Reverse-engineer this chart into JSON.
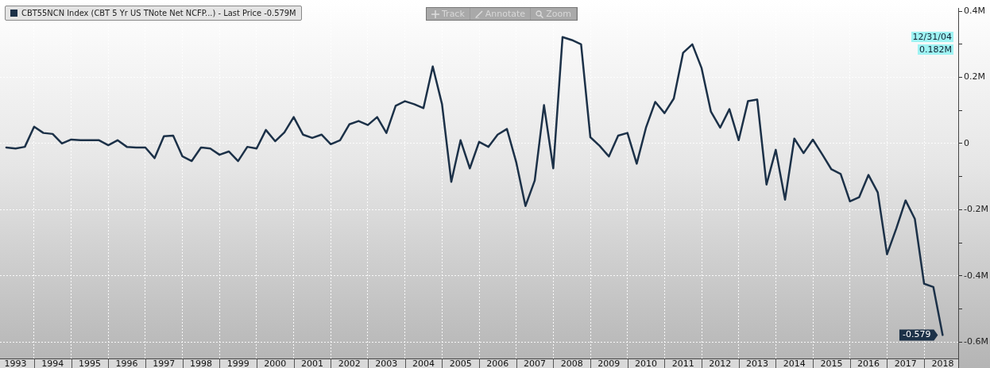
{
  "chart_data": {
    "type": "line",
    "legend": "top left",
    "grid": true,
    "marker": "none",
    "line_style": "solid",
    "x": [
      1993.25,
      1993.5,
      1993.75,
      1994,
      1994.25,
      1994.5,
      1994.75,
      1995,
      1995.25,
      1995.5,
      1995.75,
      1996,
      1996.25,
      1996.5,
      1996.75,
      1997,
      1997.25,
      1997.5,
      1997.75,
      1998,
      1998.25,
      1998.5,
      1998.75,
      1999,
      1999.25,
      1999.5,
      1999.75,
      2000,
      2000.25,
      2000.5,
      2000.75,
      2001,
      2001.25,
      2001.5,
      2001.75,
      2002,
      2002.25,
      2002.5,
      2002.75,
      2003,
      2003.25,
      2003.5,
      2003.75,
      2004,
      2004.25,
      2004.5,
      2004.75,
      2005,
      2005.25,
      2005.5,
      2005.75,
      2006,
      2006.25,
      2006.5,
      2006.75,
      2007,
      2007.25,
      2007.5,
      2007.75,
      2008,
      2008.25,
      2008.5,
      2008.75,
      2009,
      2009.25,
      2009.5,
      2009.75,
      2010,
      2010.25,
      2010.5,
      2010.75,
      2011,
      2011.25,
      2011.5,
      2011.75,
      2012,
      2012.25,
      2012.5,
      2012.75,
      2013,
      2013.25,
      2013.5,
      2013.75,
      2014,
      2014.25,
      2014.5,
      2014.75,
      2015,
      2015.25,
      2015.5,
      2015.75,
      2016,
      2016.25,
      2016.5,
      2016.75,
      2017,
      2017.25,
      2017.5,
      2017.75,
      2018,
      2018.25,
      2018.5
    ],
    "series": [
      {
        "name": "CBT55NCN Index (CBT 5 Yr US TNote Net NCFP...) - Last Price -0.579M",
        "color": "#1c3148",
        "values": [
          -0.012,
          -0.015,
          -0.01,
          0.051,
          0.032,
          0.029,
          0.0,
          0.012,
          0.01,
          0.01,
          0.01,
          -0.005,
          0.01,
          -0.01,
          -0.012,
          -0.012,
          -0.044,
          0.022,
          0.024,
          -0.039,
          -0.053,
          -0.012,
          -0.015,
          -0.034,
          -0.024,
          -0.053,
          -0.01,
          -0.015,
          0.041,
          0.007,
          0.034,
          0.08,
          0.027,
          0.017,
          0.027,
          -0.002,
          0.01,
          0.058,
          0.068,
          0.056,
          0.08,
          0.032,
          0.114,
          0.128,
          0.119,
          0.107,
          0.233,
          0.119,
          -0.116,
          0.01,
          -0.075,
          0.005,
          -0.01,
          0.027,
          0.044,
          -0.056,
          -0.189,
          -0.112,
          0.116,
          -0.075,
          0.322,
          0.313,
          0.3,
          0.019,
          -0.007,
          -0.039,
          0.024,
          0.032,
          -0.061,
          0.048,
          0.126,
          0.092,
          0.136,
          0.274,
          0.3,
          0.228,
          0.097,
          0.048,
          0.104,
          0.01,
          0.128,
          0.133,
          -0.124,
          -0.019,
          -0.17,
          0.015,
          -0.029,
          0.012,
          -0.032,
          -0.078,
          -0.092,
          -0.175,
          -0.162,
          -0.095,
          -0.148,
          -0.335,
          -0.257,
          -0.172,
          -0.228,
          -0.424,
          -0.434,
          -0.579
        ]
      }
    ],
    "xlim": [
      1993.08,
      2018.92
    ],
    "xticks": [
      {
        "value": 1993.5,
        "label": "1993"
      },
      {
        "value": 1994,
        "label": null
      },
      {
        "value": 1994.5,
        "label": "1994"
      },
      {
        "value": 1995,
        "label": null
      },
      {
        "value": 1995.5,
        "label": "1995"
      },
      {
        "value": 1996,
        "label": null
      },
      {
        "value": 1996.5,
        "label": "1996"
      },
      {
        "value": 1997,
        "label": null
      },
      {
        "value": 1997.5,
        "label": "1997"
      },
      {
        "value": 1998,
        "label": null
      },
      {
        "value": 1998.5,
        "label": "1998"
      },
      {
        "value": 1999,
        "label": null
      },
      {
        "value": 1999.5,
        "label": "1999"
      },
      {
        "value": 2000,
        "label": null
      },
      {
        "value": 2000.5,
        "label": "2000"
      },
      {
        "value": 2001,
        "label": null
      },
      {
        "value": 2001.5,
        "label": "2001"
      },
      {
        "value": 2002,
        "label": null
      },
      {
        "value": 2002.5,
        "label": "2002"
      },
      {
        "value": 2003,
        "label": null
      },
      {
        "value": 2003.5,
        "label": "2003"
      },
      {
        "value": 2004,
        "label": null
      },
      {
        "value": 2004.5,
        "label": "2004"
      },
      {
        "value": 2005,
        "label": null
      },
      {
        "value": 2005.5,
        "label": "2005"
      },
      {
        "value": 2006,
        "label": null
      },
      {
        "value": 2006.5,
        "label": "2006"
      },
      {
        "value": 2007,
        "label": null
      },
      {
        "value": 2007.5,
        "label": "2007"
      },
      {
        "value": 2008,
        "label": null
      },
      {
        "value": 2008.5,
        "label": "2008"
      },
      {
        "value": 2009,
        "label": null
      },
      {
        "value": 2009.5,
        "label": "2009"
      },
      {
        "value": 2010,
        "label": null
      },
      {
        "value": 2010.5,
        "label": "2010"
      },
      {
        "value": 2011,
        "label": null
      },
      {
        "value": 2011.5,
        "label": "2011"
      },
      {
        "value": 2012,
        "label": null
      },
      {
        "value": 2012.5,
        "label": "2012"
      },
      {
        "value": 2013,
        "label": null
      },
      {
        "value": 2013.5,
        "label": "2013"
      },
      {
        "value": 2014,
        "label": null
      },
      {
        "value": 2014.5,
        "label": "2014"
      },
      {
        "value": 2015,
        "label": null
      },
      {
        "value": 2015.5,
        "label": "2015"
      },
      {
        "value": 2016,
        "label": null
      },
      {
        "value": 2016.5,
        "label": "2016"
      },
      {
        "value": 2017,
        "label": null
      },
      {
        "value": 2017.5,
        "label": "2017"
      },
      {
        "value": 2018,
        "label": null
      },
      {
        "value": 2018.5,
        "label": "2018"
      }
    ],
    "ylim": [
      -0.65,
      0.41
    ],
    "yticks": [
      {
        "value": 0.4,
        "label": "0.4M"
      },
      {
        "value": 0.3,
        "label": null
      },
      {
        "value": 0.2,
        "label": "0.2M"
      },
      {
        "value": 0.1,
        "label": null
      },
      {
        "value": 0,
        "label": "0"
      },
      {
        "value": -0.1,
        "label": null
      },
      {
        "value": -0.2,
        "label": "-0.2M"
      },
      {
        "value": -0.3,
        "label": null
      },
      {
        "value": -0.4,
        "label": "-0.4M"
      },
      {
        "value": -0.5,
        "label": null
      },
      {
        "value": -0.6,
        "label": "-0.6M"
      }
    ],
    "annotations": [
      "Track",
      "Annotate",
      "Zoom",
      "12/31/04",
      "0.182M",
      {
        "text": "-0.579",
        "x": 2018.5,
        "y": -0.579
      }
    ]
  }
}
